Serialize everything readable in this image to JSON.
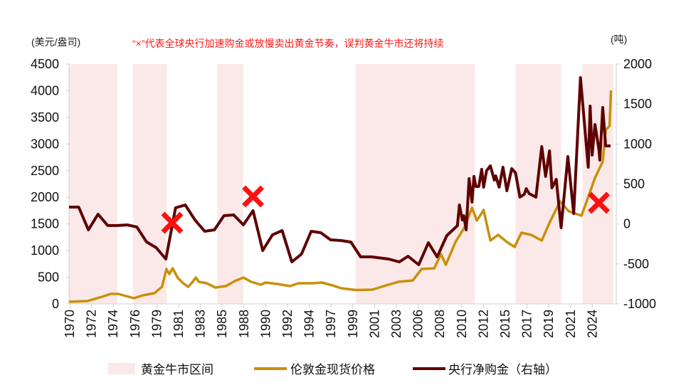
{
  "chart_data": {
    "type": "line",
    "note": "“×”代表全球央行加速购金或放慢卖出黄金节奏，误判黄金牛市还将持续",
    "left_axis": {
      "unit_label": "(美元/盎司)",
      "ylim": [
        0,
        4500
      ],
      "ticks": [
        "0",
        "500",
        "1000",
        "1500",
        "2000",
        "2500",
        "3000",
        "3500",
        "4000",
        "4500"
      ]
    },
    "right_axis": {
      "unit_label": "(吨)",
      "ylim": [
        -1000,
        2000
      ],
      "ticks": [
        "-1000",
        "-500",
        "0",
        "500",
        "1000",
        "1500",
        "2000"
      ]
    },
    "x_range": [
      1970,
      2026.2
    ],
    "x_tick_labels": [
      "1970",
      "1972",
      "1974",
      "1976",
      "1979",
      "1981",
      "1983",
      "1985",
      "1988",
      "1990",
      "1992",
      "1994",
      "1997",
      "1999",
      "2001",
      "2003",
      "2006",
      "2008",
      "2010",
      "2012",
      "2015",
      "2017",
      "2019",
      "2021",
      "2024"
    ],
    "legend_position": "bottom",
    "grid": false,
    "bull_market": {
      "name": "黄金牛市区间",
      "color": "#fbe9e9",
      "periods": [
        [
          1970,
          1975
        ],
        [
          1976.6,
          1980.1
        ],
        [
          1985.3,
          1988.0
        ],
        [
          1999.6,
          2011.9
        ],
        [
          2016.1,
          2020.8
        ],
        [
          2023.0,
          2026.2
        ]
      ]
    },
    "series": [
      {
        "name": "伦敦金现货价格",
        "axis": "left",
        "color": "#c8900a",
        "x": [
          1970,
          1971.9,
          1973.4,
          1974.3,
          1975.1,
          1975.9,
          1976.7,
          1977.6,
          1978.8,
          1979.6,
          1980.06,
          1980.35,
          1980.7,
          1981.2,
          1981.7,
          1982.3,
          1982.7,
          1983.1,
          1983.4,
          1984.2,
          1985.1,
          1986.2,
          1987.1,
          1988.0,
          1988.8,
          1989.8,
          1990.3,
          1991.5,
          1992.8,
          1993.7,
          1995.2,
          1996.1,
          1997.2,
          1998.1,
          1999.6,
          2001.3,
          2002.5,
          2004.0,
          2005.5,
          2006.4,
          2007.7,
          2008.4,
          2008.9,
          2009.9,
          2010.8,
          2011.6,
          2012.1,
          2012.8,
          2013.5,
          2014.3,
          2015.2,
          2016.0,
          2016.7,
          2017.7,
          2018.8,
          2019.6,
          2020.7,
          2021.6,
          2022.9,
          2023.6,
          2024.3,
          2025.1,
          2025.4,
          2025.8,
          2025.95
        ],
        "values": [
          40,
          53,
          134,
          187,
          187,
          147,
          107,
          160,
          200,
          320,
          654,
          560,
          668,
          494,
          400,
          320,
          400,
          494,
          414,
          387,
          307,
          334,
          427,
          494,
          414,
          360,
          400,
          374,
          334,
          387,
          387,
          400,
          347,
          294,
          260,
          267,
          334,
          414,
          440,
          654,
          668,
          935,
          734,
          1162,
          1429,
          1803,
          1562,
          1763,
          1188,
          1295,
          1162,
          1068,
          1335,
          1295,
          1188,
          1522,
          1923,
          1736,
          1656,
          2003,
          2363,
          2671,
          3258,
          3338,
          4006
        ]
      },
      {
        "name": "央行净购金（右轴）",
        "axis": "right",
        "color": "#5e0000",
        "x": [
          1970,
          1971,
          1972,
          1973,
          1974,
          1975,
          1976,
          1977,
          1978,
          1979,
          1980,
          1981,
          1982,
          1983,
          1984,
          1985,
          1986,
          1987,
          1988,
          1989,
          1990,
          1991,
          1992,
          1993,
          1994,
          1995,
          1996,
          1997,
          1998.1,
          1999.1,
          2000.1,
          2001.2,
          2003.0,
          2004.1,
          2005.0,
          2006.1,
          2007.1,
          2008.0,
          2009.0,
          2010.1,
          2010.3,
          2010.6,
          2010.75,
          2011.0,
          2011.3,
          2011.6,
          2011.8,
          2012.0,
          2012.3,
          2012.6,
          2012.8,
          2013.1,
          2013.5,
          2013.9,
          2014.05,
          2014.4,
          2014.8,
          2015.2,
          2015.7,
          2016.1,
          2016.55,
          2017.0,
          2017.2,
          2017.5,
          2018.2,
          2018.8,
          2019.2,
          2019.6,
          2019.85,
          2020.3,
          2020.8,
          2021.5,
          2022.1,
          2022.8,
          2023.6,
          2023.8,
          2024.0,
          2024.3,
          2024.7,
          2024.8,
          2025.1,
          2025.4,
          2025.9
        ],
        "values": [
          211,
          211,
          -74,
          122,
          -20,
          -20,
          -12,
          -38,
          -225,
          -297,
          -439,
          202,
          237,
          50,
          -92,
          -74,
          104,
          113,
          -12,
          166,
          -332,
          -136,
          -83,
          -475,
          -377,
          -92,
          -110,
          -199,
          -208,
          -226,
          -412,
          -412,
          -439,
          -475,
          -404,
          -510,
          -234,
          -412,
          -145,
          -21,
          237,
          50,
          104,
          -74,
          567,
          273,
          594,
          469,
          469,
          683,
          460,
          665,
          727,
          549,
          602,
          460,
          709,
          415,
          691,
          638,
          335,
          371,
          442,
          380,
          335,
          967,
          594,
          914,
          451,
          558,
          -47,
          843,
          131,
          1831,
          709,
          1475,
          861,
          1243,
          932,
          798,
          1457,
          976,
          976
        ]
      }
    ],
    "markers": {
      "symbol": "×",
      "color": "#ff1010",
      "points": [
        {
          "x": 1980.65,
          "y": 1522
        },
        {
          "x": 1989.0,
          "y": 2016
        },
        {
          "x": 2024.7,
          "y": 1896
        }
      ]
    }
  }
}
